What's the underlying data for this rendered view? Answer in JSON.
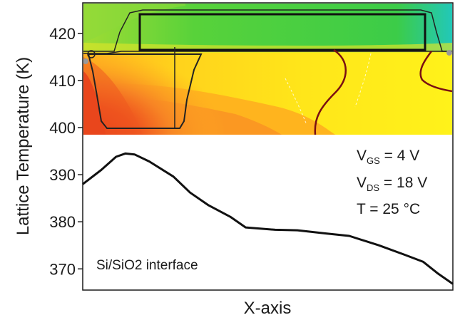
{
  "chart_data": {
    "type": "line",
    "title": "",
    "xlabel": "X-axis",
    "ylabel": "Lattice Temperature (K)",
    "ylim": [
      365.5,
      426.5
    ],
    "yticks": [
      370,
      380,
      390,
      400,
      410,
      420
    ],
    "x_tick_labels": false,
    "grid": false,
    "series": [
      {
        "x": [
          0.0,
          0.05,
          0.09,
          0.115,
          0.14,
          0.18,
          0.245,
          0.29,
          0.34,
          0.4,
          0.44,
          0.52,
          0.58,
          0.66,
          0.72,
          0.8,
          0.87,
          0.92,
          0.96,
          1.0
        ],
        "y": [
          388.0,
          391.0,
          393.8,
          394.5,
          394.3,
          392.8,
          389.6,
          386.2,
          383.5,
          381.0,
          378.8,
          378.3,
          378.2,
          377.5,
          377.0,
          375.0,
          373.0,
          371.5,
          369.0,
          366.8
        ]
      }
    ],
    "annotations": {
      "vgs": {
        "symbol": "V",
        "subscript": "GS",
        "value": " = 4 V"
      },
      "vds": {
        "symbol": "V",
        "subscript": "DS",
        "value": " = 18 V"
      },
      "temp": "T = 25 °C",
      "interface": "Si/SiO2 interface"
    },
    "inset": {
      "description_colors": {
        "red": "#e8391c",
        "orange": "#f57a20",
        "amber": "#ffb020",
        "yellow": "#ffe61a",
        "lime": "#c8e830",
        "green": "#4fd23a",
        "cyan": "#2ec8a0",
        "contour": "#7a0f12"
      }
    }
  }
}
